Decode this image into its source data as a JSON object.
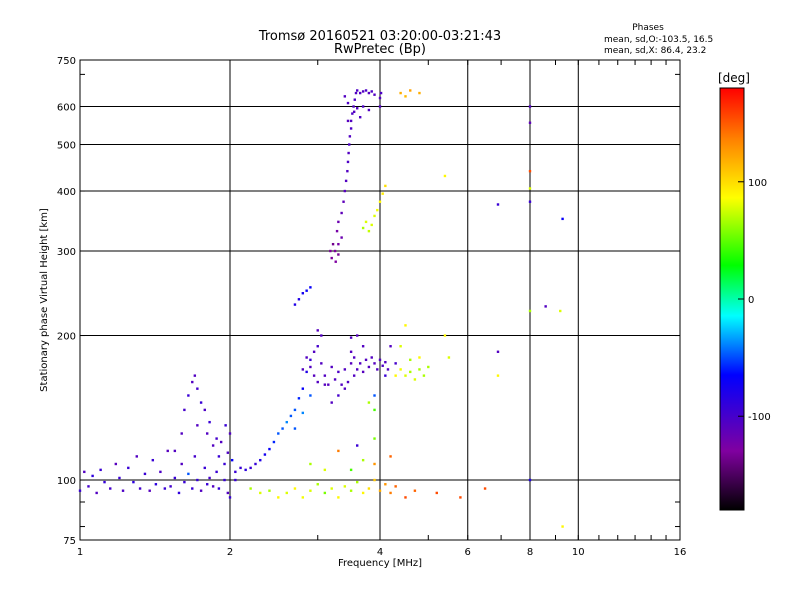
{
  "chart_data": {
    "type": "scatter",
    "title": "Tromsø 20160521 03:20:00-03:21:43",
    "subtitle": "RwPretec (Bp)",
    "xlabel": "Frequency [MHz]",
    "ylabel": "Stationary phase Virtual Height [km]",
    "xscale": "log",
    "yscale": "log",
    "xlim": [
      1,
      16
    ],
    "ylim": [
      75,
      750
    ],
    "xticks": [
      1,
      2,
      4,
      6,
      8,
      10,
      16
    ],
    "yticks": [
      75,
      100,
      200,
      300,
      400,
      500,
      600,
      750
    ],
    "grid": true,
    "stats": {
      "header": "Phases",
      "line_o": "mean, sd,O:-103.5, 16.5",
      "line_x": "mean, sd,X:  86.4, 23.2"
    },
    "colorbar": {
      "label": "[deg]",
      "range": [
        -180,
        180
      ],
      "ticks": [
        -100,
        0,
        100
      ],
      "colors": [
        "#000000",
        "#8000a0",
        "#0000ff",
        "#00ffff",
        "#00ff00",
        "#ffff00",
        "#ff8000",
        "#ff0000"
      ]
    },
    "points": [
      [
        1.0,
        95,
        -100
      ],
      [
        1.02,
        104,
        -110
      ],
      [
        1.04,
        97,
        -105
      ],
      [
        1.06,
        102,
        -95
      ],
      [
        1.08,
        94,
        -110
      ],
      [
        1.1,
        105,
        -100
      ],
      [
        1.12,
        99,
        -98
      ],
      [
        1.15,
        96,
        -105
      ],
      [
        1.18,
        108,
        -112
      ],
      [
        1.2,
        101,
        -100
      ],
      [
        1.22,
        95,
        -108
      ],
      [
        1.25,
        106,
        -100
      ],
      [
        1.28,
        99,
        -95
      ],
      [
        1.3,
        112,
        -110
      ],
      [
        1.32,
        96,
        -104
      ],
      [
        1.35,
        103,
        -100
      ],
      [
        1.38,
        95,
        -112
      ],
      [
        1.4,
        110,
        -100
      ],
      [
        1.42,
        98,
        -95
      ],
      [
        1.45,
        104,
        -108
      ],
      [
        1.48,
        96,
        -100
      ],
      [
        1.5,
        115,
        -112
      ],
      [
        1.52,
        97,
        -104
      ],
      [
        1.55,
        101,
        -100
      ],
      [
        1.58,
        94,
        -96
      ],
      [
        1.6,
        108,
        -110
      ],
      [
        1.62,
        99,
        -100
      ],
      [
        1.65,
        103,
        -60
      ],
      [
        1.68,
        96,
        -100
      ],
      [
        1.7,
        112,
        -105
      ],
      [
        1.72,
        100,
        -98
      ],
      [
        1.75,
        95,
        -110
      ],
      [
        1.78,
        106,
        -100
      ],
      [
        1.8,
        98,
        -100
      ],
      [
        1.82,
        101,
        -105
      ],
      [
        1.85,
        97,
        -110
      ],
      [
        1.88,
        104,
        -100
      ],
      [
        1.9,
        96,
        -98
      ],
      [
        1.95,
        100,
        -100
      ],
      [
        1.98,
        94,
        -110
      ],
      [
        2.0,
        92,
        -100
      ],
      [
        1.55,
        115,
        -110
      ],
      [
        1.6,
        125,
        -110
      ],
      [
        1.62,
        140,
        -105
      ],
      [
        1.65,
        150,
        -100
      ],
      [
        1.68,
        160,
        -110
      ],
      [
        1.7,
        165,
        -110
      ],
      [
        1.72,
        155,
        -105
      ],
      [
        1.75,
        145,
        -100
      ],
      [
        1.72,
        130,
        -110
      ],
      [
        1.78,
        140,
        -108
      ],
      [
        1.8,
        125,
        -110
      ],
      [
        1.82,
        132,
        -100
      ],
      [
        1.85,
        118,
        -110
      ],
      [
        1.88,
        122,
        -105
      ],
      [
        1.9,
        112,
        -100
      ],
      [
        1.92,
        120,
        -110
      ],
      [
        1.95,
        108,
        -100
      ],
      [
        1.98,
        114,
        -108
      ],
      [
        2.0,
        125,
        -110
      ],
      [
        1.96,
        130,
        -100
      ],
      [
        2.02,
        110,
        -80
      ],
      [
        2.05,
        100,
        -100
      ],
      [
        2.05,
        104,
        -100
      ],
      [
        2.1,
        106,
        -100
      ],
      [
        2.15,
        105,
        -95
      ],
      [
        2.2,
        106,
        -100
      ],
      [
        2.25,
        108,
        -98
      ],
      [
        2.3,
        110,
        -90
      ],
      [
        2.35,
        113,
        -85
      ],
      [
        2.4,
        116,
        -80
      ],
      [
        2.45,
        120,
        -70
      ],
      [
        2.5,
        125,
        -60
      ],
      [
        2.55,
        128,
        -60
      ],
      [
        2.6,
        132,
        -50
      ],
      [
        2.65,
        136,
        -60
      ],
      [
        2.7,
        140,
        -60
      ],
      [
        2.75,
        148,
        -70
      ],
      [
        2.8,
        155,
        -80
      ],
      [
        2.85,
        168,
        -90
      ],
      [
        2.9,
        178,
        -100
      ],
      [
        2.95,
        185,
        -110
      ],
      [
        3.0,
        190,
        -105
      ],
      [
        2.7,
        128,
        -60
      ],
      [
        2.8,
        138,
        -50
      ],
      [
        2.9,
        150,
        -60
      ],
      [
        2.8,
        170,
        -110
      ],
      [
        2.85,
        180,
        -110
      ],
      [
        2.9,
        172,
        -110
      ],
      [
        2.95,
        165,
        -112
      ],
      [
        3.0,
        160,
        -110
      ],
      [
        3.05,
        175,
        -110
      ],
      [
        3.1,
        165,
        -110
      ],
      [
        3.15,
        158,
        -112
      ],
      [
        3.2,
        172,
        -110
      ],
      [
        3.25,
        162,
        -110
      ],
      [
        3.3,
        168,
        -108
      ],
      [
        3.35,
        158,
        -110
      ],
      [
        3.4,
        170,
        -110
      ],
      [
        3.45,
        160,
        -110
      ],
      [
        3.5,
        175,
        -112
      ],
      [
        3.55,
        165,
        -110
      ],
      [
        3.6,
        170,
        -110
      ],
      [
        3.65,
        175,
        -110
      ],
      [
        3.7,
        168,
        -112
      ],
      [
        3.75,
        178,
        -110
      ],
      [
        3.8,
        172,
        -110
      ],
      [
        3.85,
        180,
        -110
      ],
      [
        3.9,
        175,
        -112
      ],
      [
        3.95,
        170,
        -110
      ],
      [
        4.0,
        178,
        -110
      ],
      [
        4.05,
        173,
        -108
      ],
      [
        4.1,
        176,
        -110
      ],
      [
        4.15,
        170,
        -110
      ],
      [
        3.3,
        150,
        -105
      ],
      [
        3.2,
        145,
        -110
      ],
      [
        3.4,
        155,
        -110
      ],
      [
        3.1,
        158,
        -112
      ],
      [
        3.0,
        205,
        -112
      ],
      [
        3.05,
        200,
        -110
      ],
      [
        3.5,
        198,
        -110
      ],
      [
        3.6,
        200,
        -112
      ],
      [
        3.55,
        180,
        -110
      ],
      [
        3.5,
        185,
        -112
      ],
      [
        3.7,
        190,
        -110
      ],
      [
        2.75,
        238,
        -90
      ],
      [
        2.8,
        245,
        -85
      ],
      [
        2.85,
        248,
        -80
      ],
      [
        2.9,
        252,
        -80
      ],
      [
        2.7,
        232,
        -90
      ],
      [
        3.2,
        290,
        -130
      ],
      [
        3.25,
        300,
        -130
      ],
      [
        3.3,
        310,
        -125
      ],
      [
        3.35,
        320,
        -120
      ],
      [
        3.28,
        330,
        -125
      ],
      [
        3.3,
        345,
        -120
      ],
      [
        3.35,
        360,
        -115
      ],
      [
        3.38,
        380,
        -115
      ],
      [
        3.4,
        400,
        -112
      ],
      [
        3.42,
        420,
        -110
      ],
      [
        3.44,
        440,
        -110
      ],
      [
        3.45,
        460,
        -108
      ],
      [
        3.46,
        480,
        -110
      ],
      [
        3.47,
        500,
        -108
      ],
      [
        3.48,
        520,
        -110
      ],
      [
        3.5,
        540,
        -108
      ],
      [
        3.5,
        560,
        -110
      ],
      [
        3.52,
        580,
        -108
      ],
      [
        3.54,
        600,
        -110
      ],
      [
        3.56,
        620,
        -108
      ],
      [
        3.58,
        640,
        -110
      ],
      [
        3.6,
        648,
        -108
      ],
      [
        3.65,
        640,
        -110
      ],
      [
        3.7,
        645,
        -110
      ],
      [
        3.75,
        648,
        -108
      ],
      [
        3.8,
        640,
        -110
      ],
      [
        3.85,
        645,
        -108
      ],
      [
        3.9,
        635,
        -110
      ],
      [
        3.4,
        630,
        -110
      ],
      [
        3.45,
        610,
        -108
      ],
      [
        3.6,
        595,
        -110
      ],
      [
        3.7,
        600,
        -108
      ],
      [
        3.8,
        590,
        -110
      ],
      [
        3.22,
        310,
        -135
      ],
      [
        3.18,
        300,
        -130
      ],
      [
        3.26,
        285,
        -128
      ],
      [
        3.3,
        295,
        -132
      ],
      [
        3.45,
        560,
        -112
      ],
      [
        3.55,
        585,
        -110
      ],
      [
        3.65,
        570,
        -108
      ],
      [
        4.0,
        600,
        -110
      ],
      [
        4.0,
        625,
        -110
      ],
      [
        4.02,
        640,
        -108
      ],
      [
        3.7,
        335,
        60
      ],
      [
        3.75,
        345,
        70
      ],
      [
        3.8,
        330,
        65
      ],
      [
        3.85,
        340,
        70
      ],
      [
        3.9,
        355,
        70
      ],
      [
        4.0,
        380,
        80
      ],
      [
        4.05,
        395,
        85
      ],
      [
        4.1,
        410,
        90
      ],
      [
        3.95,
        365,
        75
      ],
      [
        4.4,
        640,
        110
      ],
      [
        4.6,
        648,
        115
      ],
      [
        4.8,
        640,
        110
      ],
      [
        4.5,
        630,
        105
      ],
      [
        5.4,
        430,
        80
      ],
      [
        4.3,
        165,
        80
      ],
      [
        4.4,
        170,
        75
      ],
      [
        4.5,
        165,
        70
      ],
      [
        4.6,
        168,
        60
      ],
      [
        4.7,
        162,
        70
      ],
      [
        4.8,
        170,
        60
      ],
      [
        4.9,
        165,
        60
      ],
      [
        5.0,
        172,
        60
      ],
      [
        4.6,
        178,
        60
      ],
      [
        4.4,
        190,
        70
      ],
      [
        4.8,
        180,
        80
      ],
      [
        5.4,
        200,
        80
      ],
      [
        5.5,
        180,
        70
      ],
      [
        4.1,
        165,
        -100
      ],
      [
        4.2,
        190,
        -110
      ],
      [
        4.3,
        175,
        -105
      ],
      [
        3.9,
        150,
        -60
      ],
      [
        3.8,
        145,
        60
      ],
      [
        3.9,
        140,
        40
      ],
      [
        4.5,
        210,
        80
      ],
      [
        2.5,
        92,
        80
      ],
      [
        2.6,
        94,
        70
      ],
      [
        2.7,
        96,
        80
      ],
      [
        2.8,
        92,
        75
      ],
      [
        2.9,
        95,
        70
      ],
      [
        3.0,
        98,
        60
      ],
      [
        3.1,
        94,
        50
      ],
      [
        3.2,
        96,
        70
      ],
      [
        3.3,
        92,
        80
      ],
      [
        3.4,
        97,
        70
      ],
      [
        3.5,
        95,
        60
      ],
      [
        3.6,
        99,
        60
      ],
      [
        3.7,
        94,
        80
      ],
      [
        3.8,
        96,
        90
      ],
      [
        3.9,
        100,
        100
      ],
      [
        4.0,
        95,
        110
      ],
      [
        4.1,
        98,
        120
      ],
      [
        4.2,
        94,
        130
      ],
      [
        4.3,
        97,
        140
      ],
      [
        4.5,
        92,
        150
      ],
      [
        4.7,
        95,
        140
      ],
      [
        5.2,
        94,
        150
      ],
      [
        5.8,
        92,
        150
      ],
      [
        6.5,
        96,
        150
      ],
      [
        3.5,
        105,
        40
      ],
      [
        3.7,
        110,
        60
      ],
      [
        3.9,
        108,
        120
      ],
      [
        4.2,
        112,
        140
      ],
      [
        3.3,
        115,
        130
      ],
      [
        3.6,
        118,
        -100
      ],
      [
        3.9,
        122,
        50
      ],
      [
        2.2,
        96,
        60
      ],
      [
        2.3,
        94,
        70
      ],
      [
        2.4,
        95,
        60
      ],
      [
        2.9,
        108,
        60
      ],
      [
        3.1,
        105,
        70
      ],
      [
        6.9,
        375,
        -100
      ],
      [
        6.9,
        185,
        -110
      ],
      [
        6.9,
        165,
        80
      ],
      [
        8.0,
        600,
        -110
      ],
      [
        8.0,
        555,
        -115
      ],
      [
        8.0,
        440,
        150
      ],
      [
        8.0,
        405,
        70
      ],
      [
        8.0,
        380,
        -100
      ],
      [
        8.0,
        225,
        60
      ],
      [
        8.0,
        100,
        -90
      ],
      [
        8.6,
        230,
        -110
      ],
      [
        9.2,
        225,
        70
      ],
      [
        9.3,
        350,
        -80
      ],
      [
        9.3,
        80,
        80
      ]
    ]
  }
}
